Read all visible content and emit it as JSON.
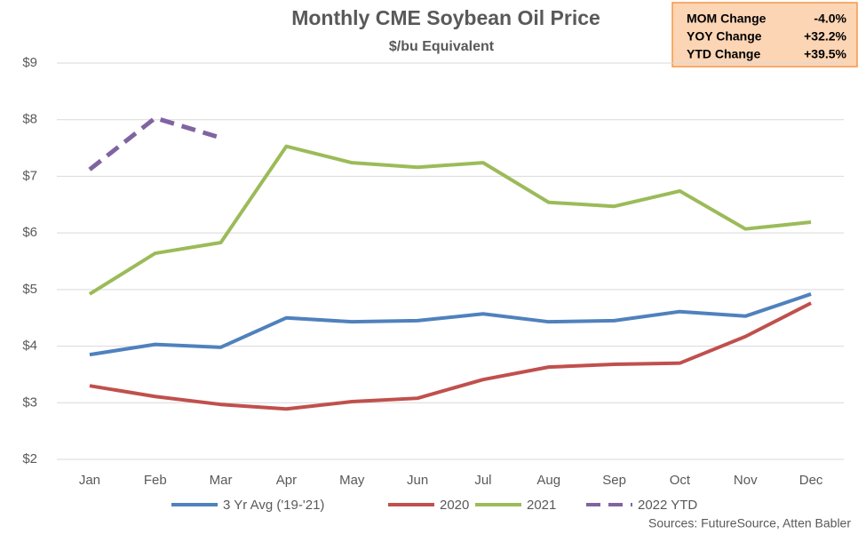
{
  "chart_data": {
    "type": "line",
    "title": "Monthly CME Soybean Oil Price",
    "subtitle": "$/bu Equivalent",
    "categories": [
      "Jan",
      "Feb",
      "Mar",
      "Apr",
      "May",
      "Jun",
      "Jul",
      "Aug",
      "Sep",
      "Oct",
      "Nov",
      "Dec"
    ],
    "series": [
      {
        "name": "3 Yr Avg ('19-'21)",
        "color": "#4f81bd",
        "values": [
          3.85,
          4.03,
          3.98,
          4.5,
          4.43,
          4.45,
          4.57,
          4.43,
          4.45,
          4.61,
          4.53,
          4.92
        ]
      },
      {
        "name": "2020",
        "color": "#c0504d",
        "values": [
          3.3,
          3.11,
          2.97,
          2.89,
          3.02,
          3.08,
          3.41,
          3.63,
          3.68,
          3.7,
          4.17,
          4.76
        ]
      },
      {
        "name": "2021",
        "color": "#9bbb59",
        "values": [
          4.92,
          5.64,
          5.83,
          7.53,
          7.24,
          7.16,
          7.24,
          6.54,
          6.47,
          6.74,
          6.07,
          6.19
        ]
      },
      {
        "name": "2022 YTD",
        "color": "#8064a2",
        "dashed": true,
        "values": [
          7.12,
          8.03,
          7.68,
          null,
          null,
          null,
          null,
          null,
          null,
          null,
          null,
          null
        ]
      }
    ],
    "ylim": [
      2,
      9
    ],
    "yticks": [
      {
        "value": 2,
        "label": "$2"
      },
      {
        "value": 3,
        "label": "$3"
      },
      {
        "value": 4,
        "label": "$4"
      },
      {
        "value": 5,
        "label": "$5"
      },
      {
        "value": 6,
        "label": "$6"
      },
      {
        "value": 7,
        "label": "$7"
      },
      {
        "value": 8,
        "label": "$8"
      },
      {
        "value": 9,
        "label": "$9"
      }
    ],
    "grid": true,
    "legend": "bottom",
    "source": "Sources: FutureSource, Atten Babler",
    "info_box": {
      "rows": [
        [
          "MOM Change",
          "-4.0%"
        ],
        [
          "YOY Change",
          "+32.2%"
        ],
        [
          "YTD Change",
          "+39.5%"
        ]
      ]
    }
  }
}
